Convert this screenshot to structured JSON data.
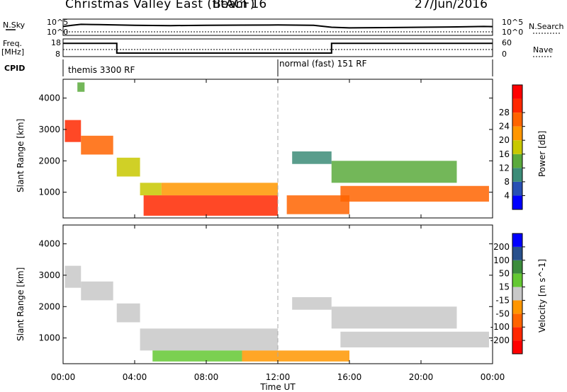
{
  "header": {
    "station": "Christmas Valley East (fitACF)",
    "beam": "Beam 16",
    "date": "27/Jun/2016"
  },
  "top_panels": {
    "nsky_label": "N.Sky",
    "nsky_ticks": [
      "10^5",
      "10^0"
    ],
    "nsearch_label": "N.Search",
    "nsearch_ticks": [
      "10^5",
      "10^0"
    ],
    "freq_label": "Freq.",
    "freq_unit": "[MHz]",
    "freq_ticks": [
      "18",
      "8"
    ],
    "nave_label": "Nave",
    "nave_ticks": [
      "60",
      "0"
    ],
    "cpid_label": "CPID",
    "cpid_segments": [
      {
        "label": "themis 3300 RF",
        "start_hour": 0,
        "end_hour": 12
      },
      {
        "label": "normal (fast) 151 RF",
        "start_hour": 12,
        "end_hour": 24
      }
    ]
  },
  "chart_data": [
    {
      "type": "line",
      "title": "N.Sky / N.Search",
      "x": [
        0,
        0.5,
        1,
        2,
        4,
        6,
        8,
        10,
        12,
        14,
        15,
        16,
        18,
        20,
        22,
        23.5,
        24
      ],
      "series": [
        {
          "name": "N.Sky",
          "values": [
            0.55,
            0.62,
            0.68,
            0.66,
            0.62,
            0.6,
            0.62,
            0.63,
            0.64,
            0.62,
            0.5,
            0.46,
            0.48,
            0.5,
            0.52,
            0.55,
            0.54
          ]
        }
      ],
      "ylim": [
        0,
        1
      ]
    },
    {
      "type": "line",
      "title": "Freq. / Nave",
      "x": [
        0,
        3,
        3,
        15,
        15,
        24
      ],
      "series": [
        {
          "name": "Freq.",
          "values": [
            15.5,
            15.5,
            10,
            10,
            15.5,
            15.5
          ]
        },
        {
          "name": "Nave",
          "values": [
            24,
            24,
            24,
            24,
            24,
            24
          ]
        }
      ],
      "ylim": [
        8,
        18
      ]
    },
    {
      "type": "heatmap",
      "title": "Power",
      "xlabel": "Time UT",
      "ylabel": "Slant Range [km]",
      "x_ticks": [
        "00:00",
        "04:00",
        "08:00",
        "12:00",
        "16:00",
        "20:00",
        "00:00"
      ],
      "y_ticks": [
        "1000",
        "2000",
        "3000",
        "4000"
      ],
      "xlim": [
        0,
        24
      ],
      "ylim": [
        180,
        4600
      ],
      "colorbar_label": "Power [dB]",
      "colorbar_ticks": [
        "4",
        "8",
        "12",
        "16",
        "20",
        "24",
        "28"
      ],
      "colorbar_range": [
        0,
        30
      ],
      "colors": [
        "#0000ff",
        "#2850b4",
        "#3c8c78",
        "#5aaa3c",
        "#c8c800",
        "#ff9600",
        "#ff6400",
        "#ff2800",
        "#ff0000"
      ],
      "regions": [
        {
          "t0": 0.1,
          "t1": 1.0,
          "r0": 2600,
          "r1": 3300,
          "v": 24
        },
        {
          "t0": 1.0,
          "t1": 2.8,
          "r0": 2200,
          "r1": 2800,
          "v": 22
        },
        {
          "t0": 3.0,
          "t1": 4.3,
          "r0": 1500,
          "r1": 2100,
          "v": 16
        },
        {
          "t0": 4.3,
          "t1": 5.5,
          "r0": 900,
          "r1": 1300,
          "v": 14
        },
        {
          "t0": 4.5,
          "t1": 12.0,
          "r0": 250,
          "r1": 900,
          "v": 26
        },
        {
          "t0": 5.5,
          "t1": 12.0,
          "r0": 900,
          "r1": 1300,
          "v": 18
        },
        {
          "t0": 12.5,
          "t1": 16.0,
          "r0": 300,
          "r1": 900,
          "v": 20
        },
        {
          "t0": 15.5,
          "t1": 23.8,
          "r0": 700,
          "r1": 1200,
          "v": 22
        },
        {
          "t0": 15.0,
          "t1": 22.0,
          "r0": 1300,
          "r1": 2000,
          "v": 12
        },
        {
          "t0": 12.8,
          "t1": 15.0,
          "r0": 1900,
          "r1": 2300,
          "v": 8
        },
        {
          "t0": 0.8,
          "t1": 1.2,
          "r0": 4200,
          "r1": 4500,
          "v": 10
        }
      ]
    },
    {
      "type": "heatmap",
      "title": "Velocity",
      "xlabel": "Time UT",
      "ylabel": "Slant Range [km]",
      "x_ticks": [
        "00:00",
        "04:00",
        "08:00",
        "12:00",
        "16:00",
        "20:00",
        "00:00"
      ],
      "y_ticks": [
        "1000",
        "2000",
        "3000",
        "4000"
      ],
      "xlim": [
        0,
        24
      ],
      "ylim": [
        180,
        4600
      ],
      "colorbar_label": "Velocity [m s^-1]",
      "colorbar_ticks": [
        "200",
        "100",
        "50",
        "15",
        "-15",
        "-50",
        "-100",
        "-200"
      ],
      "colors": [
        "#0000ff",
        "#28508c",
        "#3c8c3c",
        "#64c832",
        "#c8c8c8",
        "#ff9600",
        "#ff6400",
        "#ff2800",
        "#ff0000"
      ],
      "regions": [
        {
          "t0": 0.1,
          "t1": 1.0,
          "r0": 2600,
          "r1": 3300,
          "v": 0
        },
        {
          "t0": 1.0,
          "t1": 2.8,
          "r0": 2200,
          "r1": 2800,
          "v": 0
        },
        {
          "t0": 3.0,
          "t1": 4.3,
          "r0": 1500,
          "r1": 2100,
          "v": 0
        },
        {
          "t0": 4.3,
          "t1": 12.0,
          "r0": 600,
          "r1": 1300,
          "v": 0
        },
        {
          "t0": 5.0,
          "t1": 10.0,
          "r0": 250,
          "r1": 600,
          "v": 40
        },
        {
          "t0": 10.0,
          "t1": 16.0,
          "r0": 250,
          "r1": 600,
          "v": -30
        },
        {
          "t0": 15.5,
          "t1": 23.8,
          "r0": 700,
          "r1": 1200,
          "v": 0
        },
        {
          "t0": 15.0,
          "t1": 22.0,
          "r0": 1300,
          "r1": 2000,
          "v": 0
        },
        {
          "t0": 12.8,
          "t1": 15.0,
          "r0": 1900,
          "r1": 2300,
          "v": 0
        }
      ]
    }
  ]
}
